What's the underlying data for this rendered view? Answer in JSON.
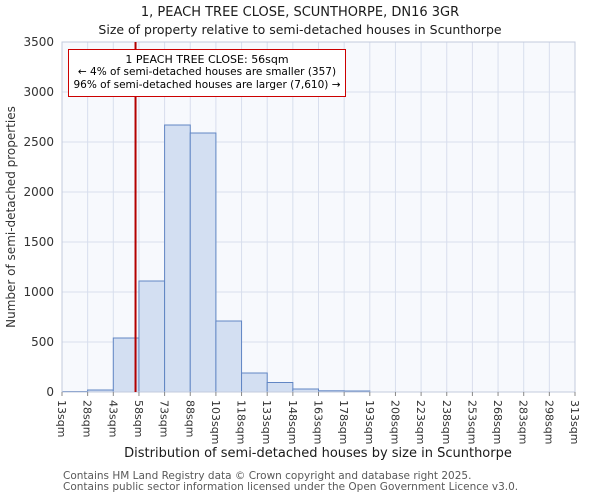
{
  "page": {
    "title": "1, PEACH TREE CLOSE, SCUNTHORPE, DN16 3GR",
    "subtitle": "Size of property relative to semi-detached houses in Scunthorpe",
    "footer_line1": "Contains HM Land Registry data © Crown copyright and database right 2025.",
    "footer_line2": "Contains public sector information licensed under the Open Government Licence v3.0."
  },
  "annotation": {
    "line1": "1 PEACH TREE CLOSE: 56sqm",
    "line2": "← 4% of semi-detached houses are smaller (357)",
    "line3": "96% of semi-detached houses are larger (7,610) →"
  },
  "chart_data": {
    "type": "bar",
    "title": "1, PEACH TREE CLOSE, SCUNTHORPE, DN16 3GR",
    "subtitle": "Size of property relative to semi-detached houses in Scunthorpe",
    "xlabel": "Distribution of semi-detached houses by size in Scunthorpe",
    "ylabel": "Number of semi-detached properties",
    "bin_edges": [
      13,
      28,
      43,
      58,
      73,
      88,
      103,
      118,
      133,
      148,
      163,
      178,
      193,
      208,
      223,
      238,
      253,
      268,
      283,
      298,
      313
    ],
    "x_tick_labels": [
      "13sqm",
      "28sqm",
      "43sqm",
      "58sqm",
      "73sqm",
      "88sqm",
      "103sqm",
      "118sqm",
      "133sqm",
      "148sqm",
      "163sqm",
      "178sqm",
      "193sqm",
      "208sqm",
      "223sqm",
      "238sqm",
      "253sqm",
      "268sqm",
      "283sqm",
      "298sqm",
      "313sqm"
    ],
    "values": [
      5,
      20,
      540,
      1110,
      2670,
      2590,
      710,
      190,
      95,
      30,
      12,
      10,
      0,
      0,
      0,
      0,
      0,
      0,
      0,
      0
    ],
    "ylim": [
      0,
      3500
    ],
    "y_ticks": [
      0,
      500,
      1000,
      1500,
      2000,
      2500,
      3000,
      3500
    ],
    "marker_value": 56,
    "marker_label": "56sqm",
    "grid": true,
    "colors": {
      "bar_fill": "#d3dff2",
      "bar_stroke": "#6186c4",
      "grid": "#d8deed",
      "plot_bg": "#f7f9fd",
      "plot_border": "#c3cbdd",
      "marker": "#b30000",
      "annotation_border": "#cc0000"
    }
  }
}
